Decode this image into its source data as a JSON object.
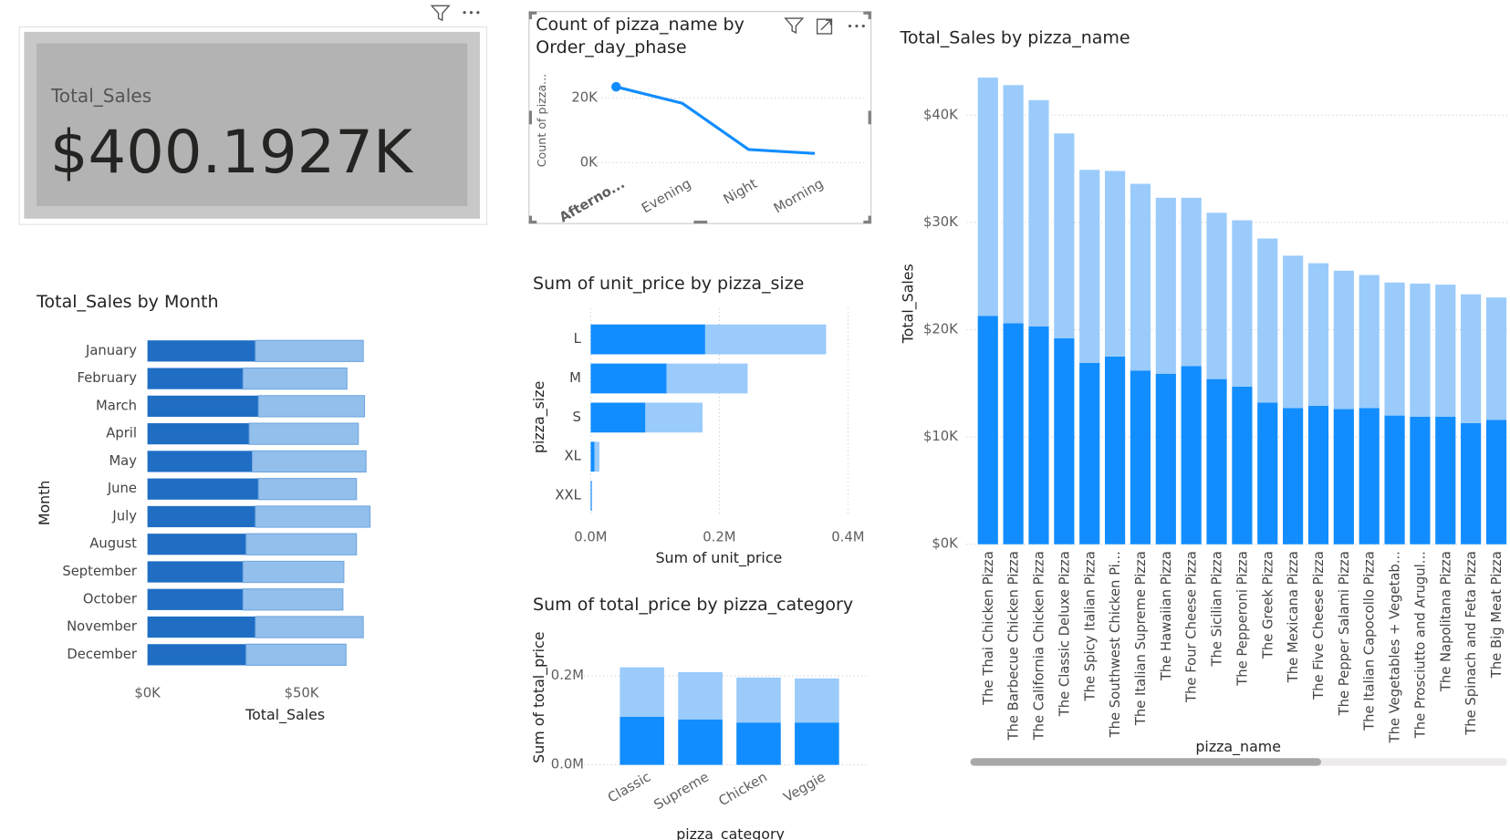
{
  "card": {
    "label": "Total_Sales",
    "value": "$400.1927K"
  },
  "chart_data": [
    {
      "type": "line",
      "title": "Count of pizza_name by Order_day_phase",
      "y_label": "Count of pizza...",
      "categories": [
        "Afterno...",
        "Evening",
        "Night",
        "Morning"
      ],
      "values": [
        23500,
        18400,
        4100,
        2900
      ],
      "color": "#118DFF",
      "ylim": [
        0,
        28000
      ],
      "yticks": [
        {
          "value": 0,
          "label": "0K"
        },
        {
          "value": 20000,
          "label": "20K"
        }
      ],
      "grid": true
    },
    {
      "type": "bar",
      "orientation": "horizontal",
      "title": "Total_Sales by Month",
      "x_label": "Total_Sales",
      "y_label": "Month",
      "categories": [
        "January",
        "February",
        "March",
        "April",
        "May",
        "June",
        "July",
        "August",
        "September",
        "October",
        "November",
        "December"
      ],
      "series": [
        {
          "color": "#1F6EC4",
          "values": [
            35000,
            31000,
            36000,
            33000,
            34000,
            36000,
            35000,
            32000,
            31000,
            31000,
            35000,
            32000
          ],
          "value_labels": [
            "$35K",
            "$31K",
            "$36K",
            "$33K",
            "$34K",
            "$36K",
            "$35K",
            "$32K",
            "$31K",
            "$31K",
            "$35K",
            "$32K"
          ]
        },
        {
          "color": "#92BFEC",
          "values": [
            35000,
            33700,
            34400,
            35400,
            36900,
            31800,
            37200,
            35800,
            32700,
            32400,
            35000,
            32400
          ]
        }
      ],
      "xlim": [
        0,
        75000
      ],
      "xticks": [
        {
          "value": 0,
          "label": "$0K"
        },
        {
          "value": 50000,
          "label": "$50K"
        }
      ],
      "grid": false
    },
    {
      "type": "bar",
      "orientation": "horizontal",
      "title": "Sum of unit_price by pizza_size",
      "x_label": "Sum of unit_price",
      "y_label": "pizza_size",
      "categories": [
        "L",
        "M",
        "S",
        "XL",
        "XXL"
      ],
      "series": [
        {
          "color": "#118DFF",
          "values": [
            178000,
            118000,
            85000,
            6000,
            1500
          ]
        },
        {
          "color": "#9ACBFB",
          "values": [
            188000,
            126000,
            89000,
            7500,
            500
          ]
        }
      ],
      "xlim": [
        0,
        430000
      ],
      "xticks": [
        {
          "value": 0,
          "label": "0.0M"
        },
        {
          "value": 200000,
          "label": "0.2M"
        },
        {
          "value": 400000,
          "label": "0.4M"
        }
      ],
      "grid": true
    },
    {
      "type": "bar",
      "orientation": "vertical",
      "title": "Sum of total_price by pizza_category",
      "x_label": "pizza_category",
      "y_label": "Sum of total_price",
      "categories": [
        "Classic",
        "Supreme",
        "Chicken",
        "Veggie"
      ],
      "series": [
        {
          "color": "#118DFF",
          "values": [
            108000,
            102000,
            95000,
            95000
          ]
        },
        {
          "color": "#9ACBFB",
          "values": [
            111000,
            106000,
            101000,
            99000
          ]
        }
      ],
      "ylim": [
        0,
        240000
      ],
      "yticks": [
        {
          "value": 0,
          "label": "0.0M"
        },
        {
          "value": 200000,
          "label": "0.2M"
        }
      ],
      "grid": true
    },
    {
      "type": "bar",
      "orientation": "vertical",
      "title": "Total_Sales by pizza_name",
      "x_label": "pizza_name",
      "y_label": "Total_Sales",
      "categories": [
        "The Thai Chicken Pizza",
        "The Barbecue Chicken Pizza",
        "The California Chicken Pizza",
        "The Classic Deluxe Pizza",
        "The Spicy Italian Pizza",
        "The Southwest Chicken Pi...",
        "The Italian Supreme Pizza",
        "The Hawaiian Pizza",
        "The Four Cheese Pizza",
        "The Sicilian Pizza",
        "The Pepperoni Pizza",
        "The Greek Pizza",
        "The Mexicana Pizza",
        "The Five Cheese Pizza",
        "The Pepper Salami Pizza",
        "The Italian Capocollo Pizza",
        "The Vegetables + Vegetab...",
        "The Prosciutto and Arugul...",
        "The Napolitana Pizza",
        "The Spinach and Feta Pizza",
        "The Big Meat Pizza"
      ],
      "series": [
        {
          "color": "#118DFF",
          "values": [
            21300,
            20600,
            20300,
            19200,
            16900,
            17500,
            16200,
            15900,
            16600,
            15400,
            14700,
            13200,
            12700,
            12900,
            12600,
            12700,
            12000,
            11900,
            11900,
            11300,
            11600
          ]
        },
        {
          "color": "#9ACBFB",
          "values": [
            22200,
            22200,
            21100,
            19100,
            18000,
            17300,
            17400,
            16400,
            15700,
            15500,
            15500,
            15300,
            14200,
            13300,
            12900,
            12400,
            12400,
            12400,
            12300,
            12000,
            11400
          ]
        }
      ],
      "ylim": [
        0,
        44000
      ],
      "yticks": [
        {
          "value": 0,
          "label": "$0K"
        },
        {
          "value": 10000,
          "label": "$10K"
        },
        {
          "value": 20000,
          "label": "$20K"
        },
        {
          "value": 30000,
          "label": "$30K"
        },
        {
          "value": 40000,
          "label": "$40K"
        }
      ],
      "grid": true
    }
  ]
}
